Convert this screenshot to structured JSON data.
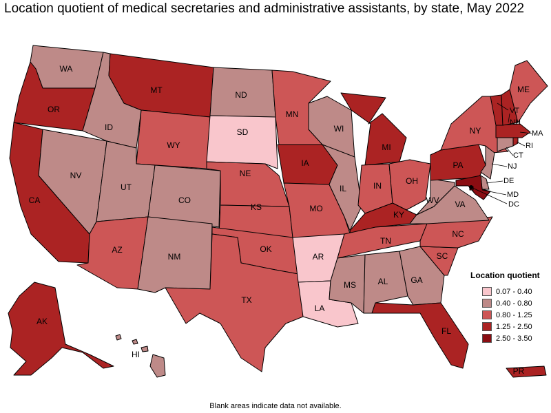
{
  "title": "Location quotient of medical secretaries and administrative assistants, by state, May 2022",
  "legend": {
    "title": "Location quotient",
    "items": [
      {
        "label": "0.07 - 0.40",
        "color": "#f9c6cc"
      },
      {
        "label": "0.40 - 0.80",
        "color": "#be8a88"
      },
      {
        "label": "0.80 - 1.25",
        "color": "#cd5656"
      },
      {
        "label": "1.25 - 2.50",
        "color": "#ab2323"
      },
      {
        "label": "2.50 - 3.50",
        "color": "#8a0d12"
      }
    ]
  },
  "footnote": "Blank areas indicate data not available.",
  "states": {
    "WA": 1,
    "OR": 3,
    "CA": 3,
    "NV": 1,
    "ID": 1,
    "MT": 3,
    "WY": 2,
    "UT": 1,
    "AZ": 2,
    "CO": 1,
    "NM": 1,
    "ND": 1,
    "SD": 0,
    "NE": 2,
    "KS": 2,
    "OK": 2,
    "TX": 2,
    "MN": 2,
    "IA": 3,
    "MO": 2,
    "AR": 0,
    "LA": 0,
    "WI": 1,
    "IL": 1,
    "MI": 3,
    "IN": 2,
    "OH": 2,
    "KY": 3,
    "TN": 2,
    "MS": 1,
    "AL": 1,
    "GA": 1,
    "FL": 3,
    "SC": 2,
    "NC": 2,
    "VA": 1,
    "WV": 1,
    "PA": 3,
    "NY": 2,
    "ME": 2,
    "VT": 3,
    "NH": 3,
    "MA": 3,
    "RI": 3,
    "CT": 1,
    "NJ": 1,
    "DE": 1,
    "MD": 4,
    "DC": 4,
    "AK": 3,
    "HI": 1,
    "PR": 3
  }
}
